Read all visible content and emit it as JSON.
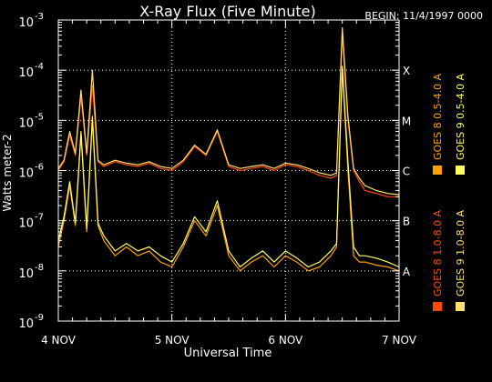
{
  "chart_data": {
    "type": "line",
    "title": "X-Ray Flux (Five Minute)",
    "begin_label": "BEGIN: 11/4/1997 0000",
    "xlabel": "Universal Time",
    "ylabel": "Watts meter-2",
    "y_scale": "log",
    "ylim": [
      1e-09,
      0.001
    ],
    "xlim": [
      0,
      3
    ],
    "x_ticks": [
      {
        "value": 0,
        "label": "4 NOV"
      },
      {
        "value": 1,
        "label": "5 NOV"
      },
      {
        "value": 2,
        "label": "6 NOV"
      },
      {
        "value": 3,
        "label": "7 NOV"
      }
    ],
    "y_ticks": [
      {
        "exp": -3,
        "base": "10",
        "exp_label": "-3"
      },
      {
        "exp": -4,
        "base": "10",
        "exp_label": "-4"
      },
      {
        "exp": -5,
        "base": "10",
        "exp_label": "-5"
      },
      {
        "exp": -6,
        "base": "10",
        "exp_label": "-6"
      },
      {
        "exp": -7,
        "base": "10",
        "exp_label": "-7"
      },
      {
        "exp": -8,
        "base": "10",
        "exp_label": "-8"
      },
      {
        "exp": -9,
        "base": "10",
        "exp_label": "-9"
      }
    ],
    "flare_classes": [
      {
        "label": "X",
        "exp": -4
      },
      {
        "label": "M",
        "exp": -5
      },
      {
        "label": "C",
        "exp": -6
      },
      {
        "label": "B",
        "exp": -7
      },
      {
        "label": "A",
        "exp": -8
      }
    ],
    "grid": {
      "vertical": [
        1,
        2
      ],
      "horizontal": [
        -4,
        -5,
        -6,
        -7,
        -8
      ]
    },
    "series": [
      {
        "name": "GOES 8 1.0-8.0 A",
        "color": "#ff4a00",
        "x": [
          0,
          0.05,
          0.1,
          0.15,
          0.2,
          0.25,
          0.3,
          0.35,
          0.4,
          0.5,
          0.6,
          0.7,
          0.8,
          0.9,
          1.0,
          1.1,
          1.2,
          1.3,
          1.4,
          1.5,
          1.6,
          1.7,
          1.8,
          1.9,
          2.0,
          2.1,
          2.2,
          2.3,
          2.4,
          2.45,
          2.5,
          2.55,
          2.6,
          2.65,
          2.7,
          2.8,
          2.9,
          3.0
        ],
        "y": [
          1e-06,
          1.5e-06,
          5e-06,
          2e-06,
          3e-05,
          2e-06,
          5e-05,
          1.5e-06,
          1.2e-06,
          1.5e-06,
          1.3e-06,
          1.2e-06,
          1.4e-06,
          1.1e-06,
          1e-06,
          1.5e-06,
          3e-06,
          2e-06,
          6e-06,
          1.2e-06,
          1e-06,
          1.1e-06,
          1.2e-06,
          1e-06,
          1.3e-06,
          1.2e-06,
          1e-06,
          8e-07,
          7e-07,
          8e-07,
          0.0005,
          1e-05,
          1e-06,
          6e-07,
          4e-07,
          3.5e-07,
          3e-07,
          3e-07
        ]
      },
      {
        "name": "GOES 8 0.5-4.0 A",
        "color": "#ffa000",
        "x": [
          0,
          0.05,
          0.1,
          0.15,
          0.2,
          0.25,
          0.3,
          0.35,
          0.4,
          0.5,
          0.6,
          0.7,
          0.8,
          0.9,
          1.0,
          1.1,
          1.2,
          1.3,
          1.4,
          1.5,
          1.6,
          1.7,
          1.8,
          1.9,
          2.0,
          2.1,
          2.2,
          2.3,
          2.4,
          2.45,
          2.5,
          2.55,
          2.6,
          2.65,
          2.7,
          2.8,
          2.9,
          3.0
        ],
        "y": [
          3e-08,
          1e-07,
          5e-07,
          8e-08,
          5e-06,
          6e-08,
          1e-05,
          8e-08,
          4e-08,
          2e-08,
          3e-08,
          2e-08,
          2.5e-08,
          1.5e-08,
          1.2e-08,
          3e-08,
          1e-07,
          5e-08,
          2e-07,
          2e-08,
          1e-08,
          1.5e-08,
          2e-08,
          1.2e-08,
          2e-08,
          1.5e-08,
          1e-08,
          1.2e-08,
          2e-08,
          3e-08,
          0.0001,
          1e-06,
          2e-08,
          1.5e-08,
          1.5e-08,
          1.3e-08,
          1.2e-08,
          1e-08
        ]
      },
      {
        "name": "GOES 9 1.0-8.0 A",
        "color": "#ffe070",
        "x": [
          0,
          0.05,
          0.1,
          0.15,
          0.2,
          0.25,
          0.3,
          0.35,
          0.4,
          0.5,
          0.6,
          0.7,
          0.8,
          0.9,
          1.0,
          1.1,
          1.2,
          1.3,
          1.4,
          1.5,
          1.6,
          1.7,
          1.8,
          1.9,
          2.0,
          2.1,
          2.2,
          2.3,
          2.4,
          2.45,
          2.5,
          2.55,
          2.6,
          2.65,
          2.7,
          2.8,
          2.9,
          3.0
        ],
        "y": [
          1.1e-06,
          1.6e-06,
          6e-06,
          2.2e-06,
          4e-05,
          2.2e-06,
          0.0001,
          1.6e-06,
          1.3e-06,
          1.6e-06,
          1.4e-06,
          1.3e-06,
          1.5e-06,
          1.2e-06,
          1.1e-06,
          1.6e-06,
          3.2e-06,
          2.1e-06,
          6.5e-06,
          1.3e-06,
          1.1e-06,
          1.2e-06,
          1.3e-06,
          1.1e-06,
          1.4e-06,
          1.3e-06,
          1.1e-06,
          9e-07,
          8e-07,
          9e-07,
          0.0007,
          1.2e-05,
          1.1e-06,
          7e-07,
          5e-07,
          4e-07,
          3.5e-07,
          3.3e-07
        ]
      },
      {
        "name": "GOES 9 0.5-4.0 A",
        "color": "#ffff60",
        "x": [
          0,
          0.05,
          0.1,
          0.15,
          0.2,
          0.25,
          0.3,
          0.35,
          0.4,
          0.5,
          0.6,
          0.7,
          0.8,
          0.9,
          1.0,
          1.1,
          1.2,
          1.3,
          1.4,
          1.5,
          1.6,
          1.7,
          1.8,
          1.9,
          2.0,
          2.1,
          2.2,
          2.3,
          2.4,
          2.45,
          2.5,
          2.55,
          2.6,
          2.65,
          2.7,
          2.8,
          2.9,
          3.0
        ],
        "y": [
          4e-08,
          1.2e-07,
          6e-07,
          9e-08,
          6e-06,
          7e-08,
          1.2e-05,
          9e-08,
          5e-08,
          2.5e-08,
          3.5e-08,
          2.5e-08,
          3e-08,
          2e-08,
          1.5e-08,
          3.5e-08,
          1.2e-07,
          6e-08,
          2.5e-07,
          2.5e-08,
          1.2e-08,
          1.8e-08,
          2.5e-08,
          1.5e-08,
          2.5e-08,
          1.8e-08,
          1.2e-08,
          1.5e-08,
          2.5e-08,
          3.5e-08,
          0.00012,
          1.5e-06,
          3e-08,
          2e-08,
          2e-08,
          1.8e-08,
          1.5e-08,
          1.2e-08
        ]
      }
    ]
  }
}
